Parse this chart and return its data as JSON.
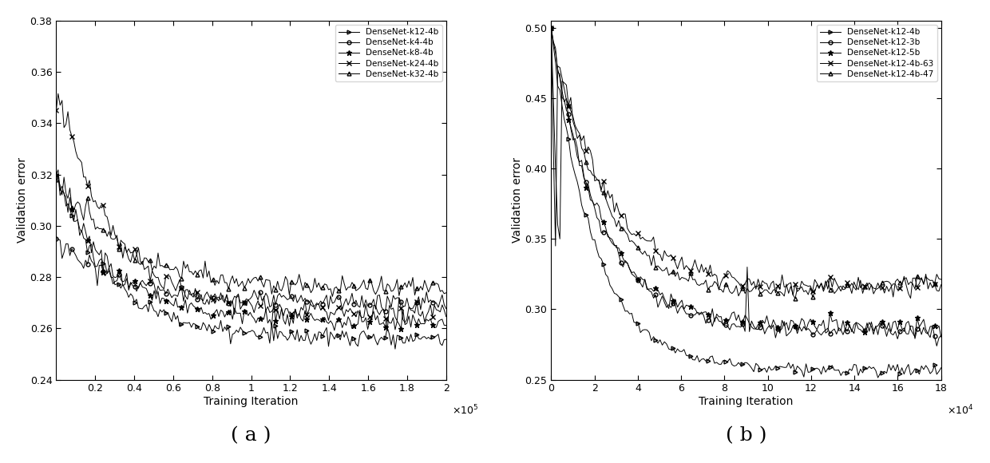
{
  "plot_a": {
    "xlim": [
      0,
      200000
    ],
    "ylim": [
      0.24,
      0.38
    ],
    "xlabel": "Training Iteration",
    "ylabel": "Validation error",
    "xticks": [
      20000,
      40000,
      60000,
      80000,
      100000,
      120000,
      140000,
      160000,
      180000,
      200000
    ],
    "xticklabels": [
      "0.2",
      "0.4",
      "0.6",
      "0.8",
      "1",
      "1.2",
      "1.4",
      "1.6",
      "1.8",
      "2"
    ],
    "yticks": [
      0.24,
      0.26,
      0.28,
      0.3,
      0.32,
      0.34,
      0.36,
      0.38
    ],
    "scale_label": "×10⁵",
    "label": "( a )",
    "series": [
      {
        "name": "DenseNet-k12-4b",
        "marker": ">",
        "ms": 3.5
      },
      {
        "name": "DenseNet-k4-4b",
        "marker": "o",
        "ms": 3.5
      },
      {
        "name": "DenseNet-k8-4b",
        "marker": "*",
        "ms": 4.5
      },
      {
        "name": "DenseNet-k24-4b",
        "marker": "x",
        "ms": 4.5
      },
      {
        "name": "DenseNet-k32-4b",
        "marker": "^",
        "ms": 3.5
      }
    ]
  },
  "plot_b": {
    "xlim": [
      0,
      180000
    ],
    "ylim": [
      0.25,
      0.505
    ],
    "xlabel": "Training Iteration",
    "ylabel": "Validation error",
    "xticks": [
      0,
      20000,
      40000,
      60000,
      80000,
      100000,
      120000,
      140000,
      160000,
      180000
    ],
    "xticklabels": [
      "0",
      "2",
      "4",
      "6",
      "8",
      "10",
      "12",
      "14",
      "16",
      "18"
    ],
    "yticks": [
      0.25,
      0.3,
      0.35,
      0.4,
      0.45,
      0.5
    ],
    "scale_label": "×10⁴",
    "label": "( b )",
    "series": [
      {
        "name": "DenseNet-k12-4b",
        "marker": ">",
        "ms": 3.5
      },
      {
        "name": "DenseNet-k12-3b",
        "marker": "o",
        "ms": 3.5
      },
      {
        "name": "DenseNet-k12-5b",
        "marker": "*",
        "ms": 4.5
      },
      {
        "name": "DenseNet-k12-4b-63",
        "marker": "x",
        "ms": 4.5
      },
      {
        "name": "DenseNet-k12-4b-47",
        "marker": "^",
        "ms": 3.5
      }
    ]
  },
  "line_color": "#000000",
  "bg_color": "#ffffff",
  "figsize": [
    12.4,
    5.8
  ],
  "dpi": 100
}
